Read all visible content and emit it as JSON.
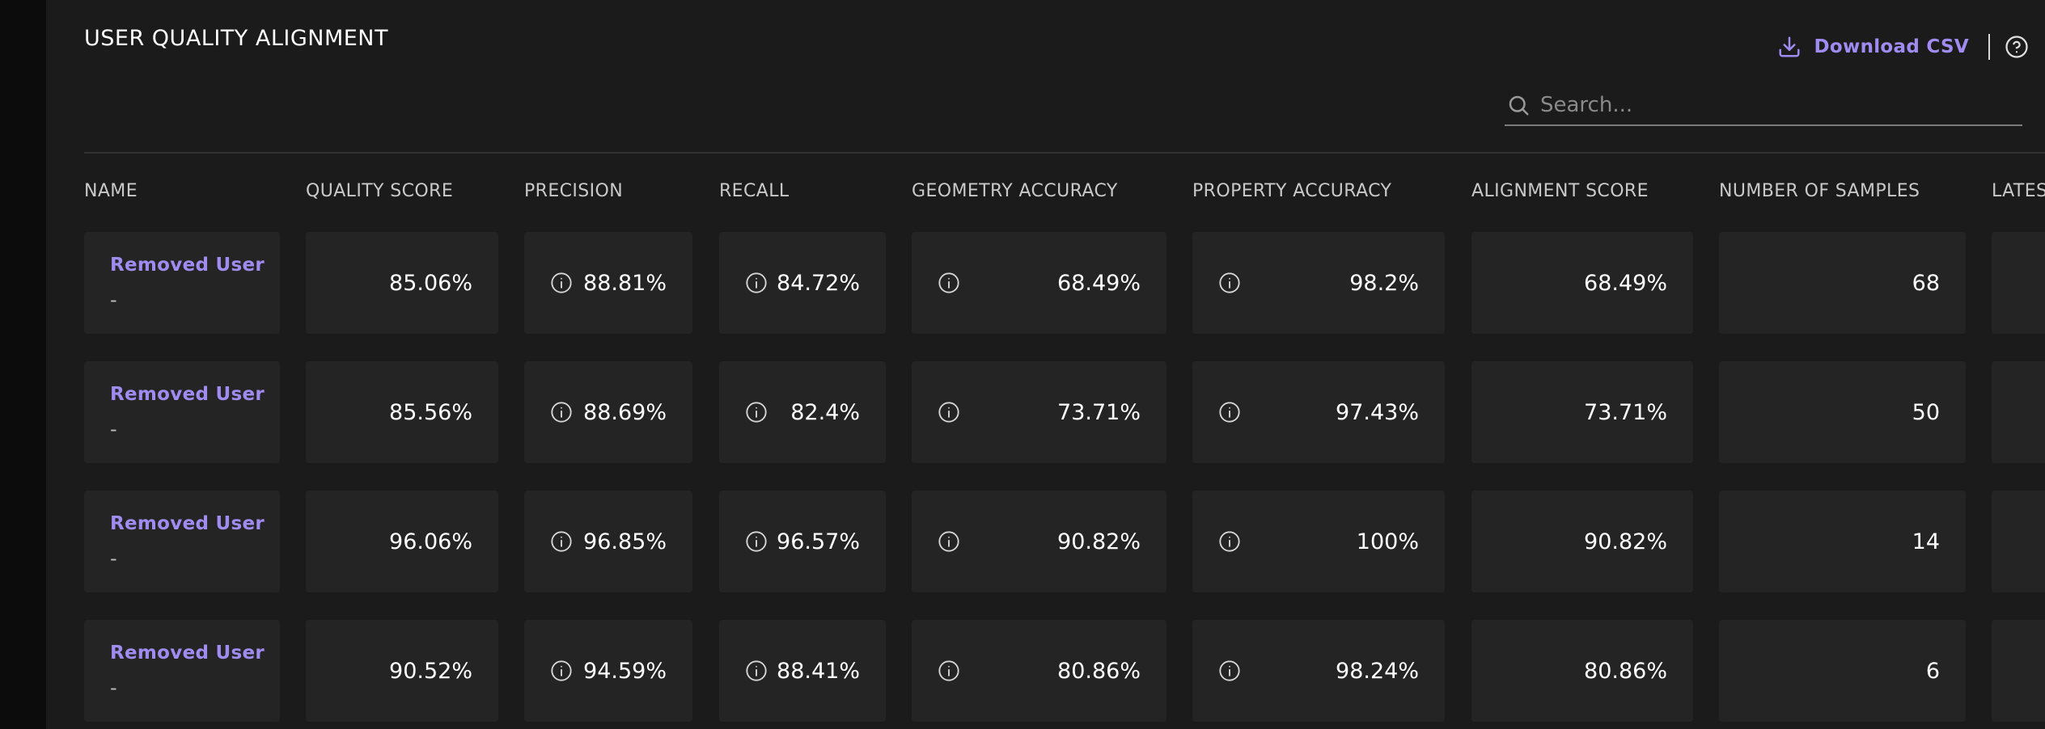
{
  "page": {
    "title": "USER QUALITY ALIGNMENT"
  },
  "toolbar": {
    "download_label": "Download CSV",
    "download_icon": "download-icon",
    "help_icon": "help-circle-icon",
    "accent_color": "#a08cf0"
  },
  "search": {
    "placeholder": "Search...",
    "value": ""
  },
  "table": {
    "columns": [
      "NAME",
      "QUALITY SCORE",
      "PRECISION",
      "RECALL",
      "GEOMETRY ACCURACY",
      "PROPERTY ACCURACY",
      "ALIGNMENT SCORE",
      "NUMBER OF SAMPLES",
      "LATES"
    ],
    "rows": [
      {
        "name": "Removed User",
        "sub": "-",
        "quality_score": "85.06%",
        "precision": "88.81%",
        "recall": "84.72%",
        "geometry_accuracy": "68.49%",
        "property_accuracy": "98.2%",
        "alignment_score": "68.49%",
        "samples": "68"
      },
      {
        "name": "Removed User",
        "sub": "-",
        "quality_score": "85.56%",
        "precision": "88.69%",
        "recall": "82.4%",
        "geometry_accuracy": "73.71%",
        "property_accuracy": "97.43%",
        "alignment_score": "73.71%",
        "samples": "50"
      },
      {
        "name": "Removed User",
        "sub": "-",
        "quality_score": "96.06%",
        "precision": "96.85%",
        "recall": "96.57%",
        "geometry_accuracy": "90.82%",
        "property_accuracy": "100%",
        "alignment_score": "90.82%",
        "samples": "14"
      },
      {
        "name": "Removed User",
        "sub": "-",
        "quality_score": "90.52%",
        "precision": "94.59%",
        "recall": "88.41%",
        "geometry_accuracy": "80.86%",
        "property_accuracy": "98.24%",
        "alignment_score": "80.86%",
        "samples": "6"
      }
    ]
  }
}
